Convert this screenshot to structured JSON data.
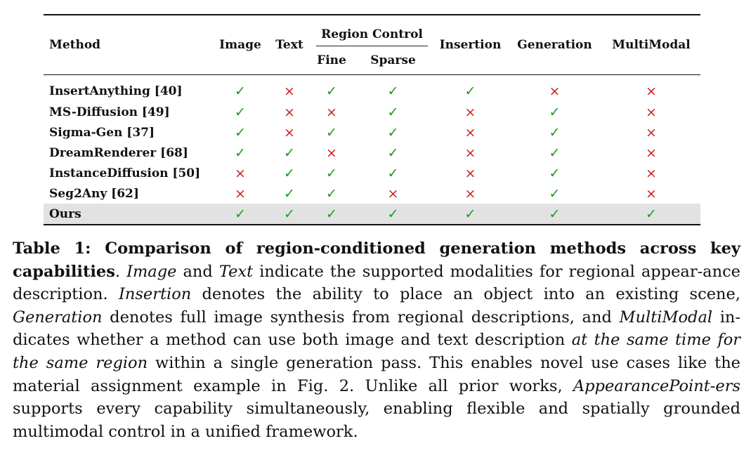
{
  "table": {
    "headers": {
      "method": "Method",
      "image": "Image",
      "text": "Text",
      "region_control": "Region Control",
      "fine": "Fine",
      "sparse": "Sparse",
      "insertion": "Insertion",
      "generation": "Generation",
      "multimodal": "MultiModal"
    },
    "symbols": {
      "yes": "✓",
      "no": "×"
    },
    "colors": {
      "yes": "#1a9a1a",
      "no": "#cc1f1f",
      "highlight_row": "#e2e2e2"
    },
    "rows": [
      {
        "method": "InsertAnything [40]",
        "values": [
          true,
          false,
          true,
          true,
          true,
          false,
          false
        ]
      },
      {
        "method": "MS-Diffusion [49]",
        "values": [
          true,
          false,
          false,
          true,
          false,
          true,
          false
        ]
      },
      {
        "method": "Sigma-Gen [37]",
        "values": [
          true,
          false,
          true,
          true,
          false,
          true,
          false
        ]
      },
      {
        "method": "DreamRenderer [68]",
        "values": [
          true,
          true,
          false,
          true,
          false,
          true,
          false
        ]
      },
      {
        "method": "InstanceDiffusion [50]",
        "values": [
          false,
          true,
          true,
          true,
          false,
          true,
          false
        ]
      },
      {
        "method": "Seg2Any [62]",
        "values": [
          false,
          true,
          true,
          false,
          false,
          true,
          false
        ]
      },
      {
        "method": "Ours",
        "values": [
          true,
          true,
          true,
          true,
          true,
          true,
          true
        ],
        "highlight": true
      }
    ]
  },
  "caption": {
    "label": "Table 1: Comparison of region-conditioned generation methods across key capabilities",
    "p1": ". ",
    "image_term": "Image",
    "p2": " and ",
    "text_term": "Text",
    "p3": " indicate the supported modalities for regional appear-ance description. ",
    "insertion_term": "Insertion",
    "p4": " denotes the ability to place an object into an existing scene, ",
    "generation_term": "Generation",
    "p5": " denotes full image synthesis from regional descriptions, and ",
    "multimodal_term": "MultiModal",
    "p6": " in-dicates whether a method can use both image and text description ",
    "same_time": "at the same time for the same region",
    "p7": " within a single generation pass. This enables novel use cases like the material assignment example in Fig. 2. Unlike all prior works, ",
    "method_name": "AppearancePoint-ers",
    "p8": " supports every capability simultaneously, enabling flexible and spatially grounded multimodal control in a unified framework."
  }
}
